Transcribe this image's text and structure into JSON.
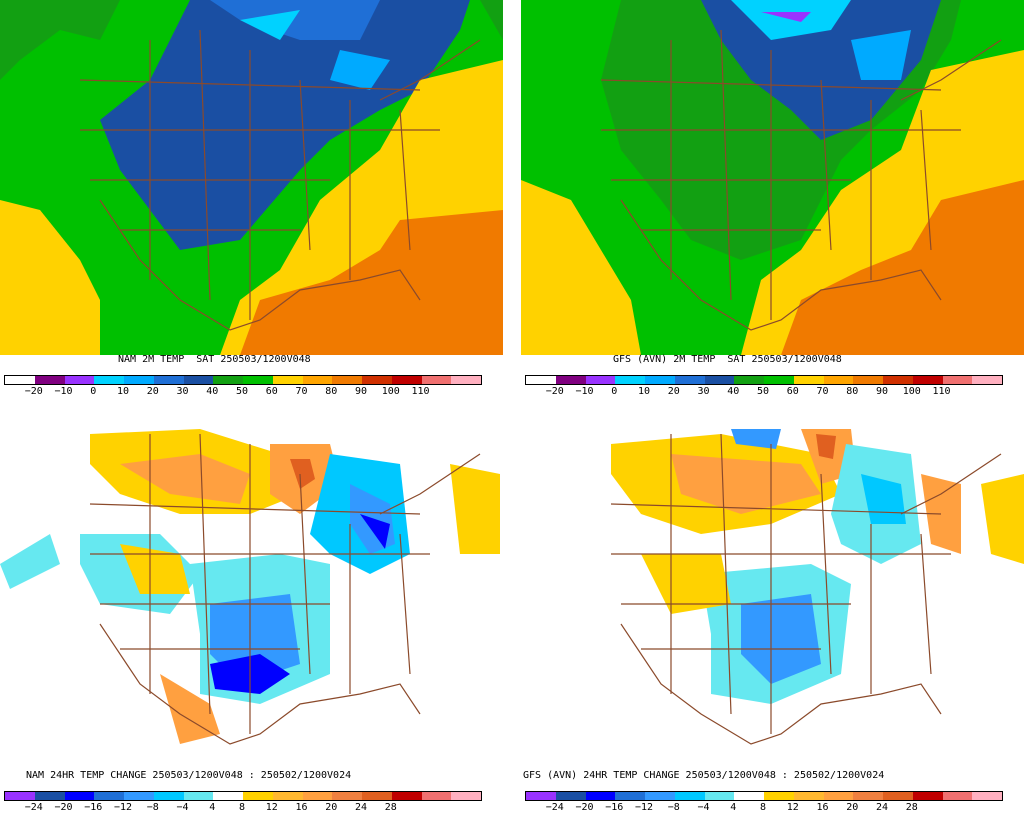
{
  "panels": [
    {
      "id": "nam-temp",
      "title": "NAM 2M TEMP  SAT 250503/1200V048",
      "scale": "temp"
    },
    {
      "id": "gfs-temp",
      "title": "GFS (AVN) 2M TEMP  SAT 250503/1200V048",
      "scale": "temp"
    },
    {
      "id": "nam-change",
      "title": "NAM 24HR TEMP CHANGE 250503/1200V048 : 250502/1200V024",
      "scale": "change"
    },
    {
      "id": "gfs-change",
      "title": "GFS (AVN) 24HR TEMP CHANGE 250503/1200V048 : 250502/1200V024",
      "scale": "change"
    }
  ],
  "temp_scale": {
    "colors": [
      "#ffffff",
      "#800080",
      "#9933ff",
      "#00d2ff",
      "#00aaff",
      "#1f6fd6",
      "#1a4fa3",
      "#12a012",
      "#00c000",
      "#ffd200",
      "#ffa500",
      "#f07a00",
      "#d03000",
      "#c00000",
      "#f07070",
      "#ffb0c0"
    ],
    "labels": [
      "-20",
      "-10",
      "0",
      "10",
      "20",
      "30",
      "40",
      "50",
      "60",
      "70",
      "80",
      "90",
      "100",
      "110"
    ]
  },
  "change_scale": {
    "colors": [
      "#9933ff",
      "#1a4fa3",
      "#0000ff",
      "#1f6fd6",
      "#3399ff",
      "#00c8ff",
      "#66e8f0",
      "#ffffff",
      "#ffd200",
      "#ffb830",
      "#ffa040",
      "#f08040",
      "#e06020",
      "#c00000",
      "#f07070",
      "#ffb0c0"
    ],
    "labels": [
      "-24",
      "-20",
      "-16",
      "-12",
      "-8",
      "-4",
      "4",
      "8",
      "12",
      "16",
      "20",
      "24",
      "28"
    ]
  }
}
